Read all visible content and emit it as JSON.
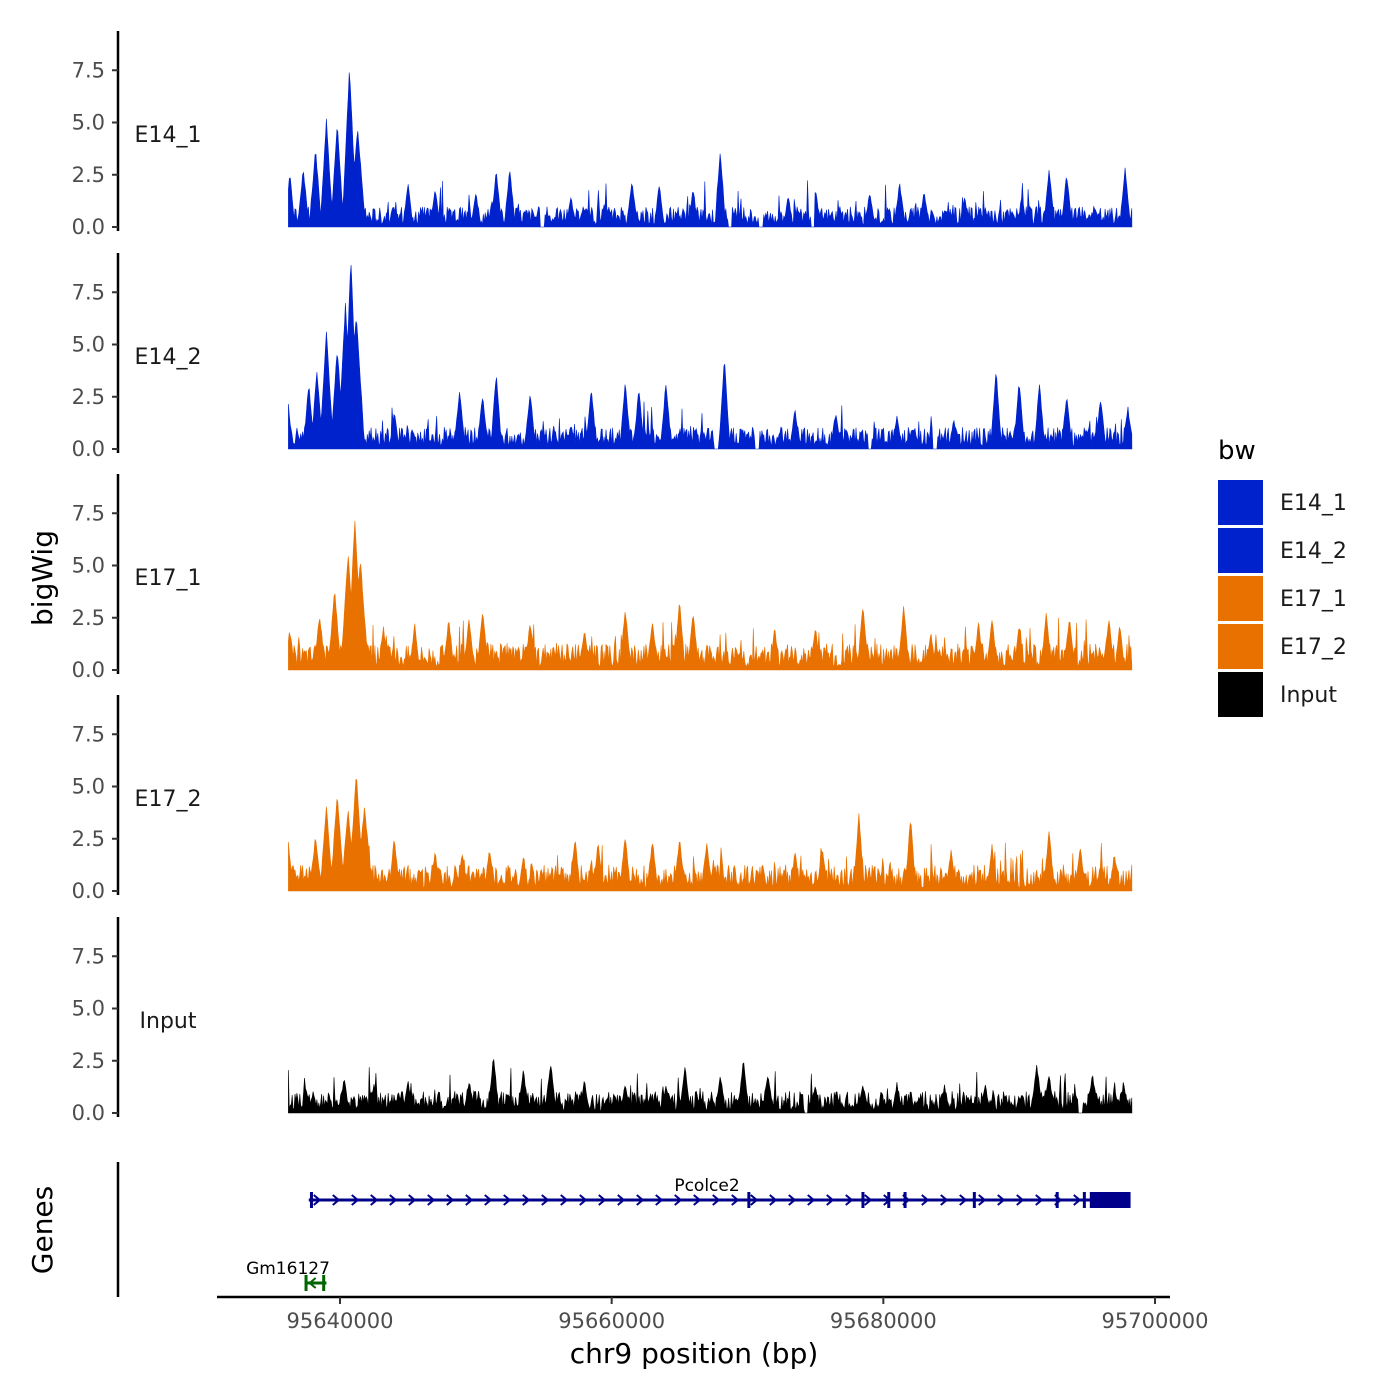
{
  "chart_data": {
    "type": "area",
    "x_axis": {
      "label": "chr9 position (bp)",
      "range": [
        95630000,
        95702000
      ],
      "ticks": [
        95640000,
        95660000,
        95680000,
        95700000
      ],
      "tick_labels": [
        "95640000",
        "95660000",
        "95680000",
        "95700000"
      ]
    },
    "y_axis": {
      "label": "bigWig",
      "range": [
        0,
        9.5
      ],
      "ticks": [
        0.0,
        2.5,
        5.0,
        7.5
      ],
      "tick_labels": [
        "0.0",
        "2.5",
        "5.0",
        "7.5"
      ]
    },
    "data_extent": [
      95636200,
      95698300
    ],
    "tracks": [
      {
        "name": "E14_1",
        "color": "#0022CC",
        "baseline": 0.7,
        "peaks": [
          {
            "x": 95636300,
            "y": 2.5,
            "w": 200
          },
          {
            "x": 95637300,
            "y": 2.7,
            "w": 220
          },
          {
            "x": 95638200,
            "y": 3.6,
            "w": 240
          },
          {
            "x": 95639000,
            "y": 5.0,
            "w": 260
          },
          {
            "x": 95639800,
            "y": 4.8,
            "w": 260
          },
          {
            "x": 95640700,
            "y": 7.5,
            "w": 300
          },
          {
            "x": 95641300,
            "y": 4.6,
            "w": 320
          },
          {
            "x": 95645000,
            "y": 2.0,
            "w": 200
          },
          {
            "x": 95647000,
            "y": 1.7,
            "w": 200
          },
          {
            "x": 95650000,
            "y": 1.6,
            "w": 200
          },
          {
            "x": 95651500,
            "y": 2.6,
            "w": 220
          },
          {
            "x": 95652500,
            "y": 2.7,
            "w": 220
          },
          {
            "x": 95657000,
            "y": 1.3,
            "w": 200
          },
          {
            "x": 95661500,
            "y": 2.0,
            "w": 220
          },
          {
            "x": 95663500,
            "y": 1.9,
            "w": 200
          },
          {
            "x": 95666000,
            "y": 1.7,
            "w": 200
          },
          {
            "x": 95668000,
            "y": 3.5,
            "w": 220
          },
          {
            "x": 95673000,
            "y": 1.4,
            "w": 200
          },
          {
            "x": 95675000,
            "y": 1.7,
            "w": 200
          },
          {
            "x": 95679000,
            "y": 1.5,
            "w": 200
          },
          {
            "x": 95681200,
            "y": 2.0,
            "w": 220
          },
          {
            "x": 95683000,
            "y": 1.6,
            "w": 200
          },
          {
            "x": 95686000,
            "y": 1.3,
            "w": 200
          },
          {
            "x": 95690200,
            "y": 1.3,
            "w": 200
          },
          {
            "x": 95692200,
            "y": 2.6,
            "w": 220
          },
          {
            "x": 95693500,
            "y": 2.4,
            "w": 220
          },
          {
            "x": 95697800,
            "y": 2.7,
            "w": 220
          }
        ],
        "gaps": [
          95654900,
          95668700,
          95671000,
          95674800
        ]
      },
      {
        "name": "E14_2",
        "color": "#0022CC",
        "baseline": 0.75,
        "peaks": [
          {
            "x": 95636100,
            "y": 2.9,
            "w": 200
          },
          {
            "x": 95637700,
            "y": 3.0,
            "w": 220
          },
          {
            "x": 95638300,
            "y": 3.6,
            "w": 240
          },
          {
            "x": 95639000,
            "y": 5.5,
            "w": 280
          },
          {
            "x": 95639800,
            "y": 4.7,
            "w": 280
          },
          {
            "x": 95640400,
            "y": 6.8,
            "w": 300
          },
          {
            "x": 95640800,
            "y": 9.0,
            "w": 300
          },
          {
            "x": 95641200,
            "y": 6.4,
            "w": 340
          },
          {
            "x": 95644000,
            "y": 1.6,
            "w": 200
          },
          {
            "x": 95648800,
            "y": 2.7,
            "w": 220
          },
          {
            "x": 95650500,
            "y": 2.5,
            "w": 220
          },
          {
            "x": 95651500,
            "y": 3.5,
            "w": 220
          },
          {
            "x": 95654000,
            "y": 2.6,
            "w": 220
          },
          {
            "x": 95658500,
            "y": 2.7,
            "w": 220
          },
          {
            "x": 95661000,
            "y": 3.1,
            "w": 220
          },
          {
            "x": 95662000,
            "y": 2.7,
            "w": 220
          },
          {
            "x": 95664000,
            "y": 3.1,
            "w": 220
          },
          {
            "x": 95668300,
            "y": 4.2,
            "w": 220
          },
          {
            "x": 95673500,
            "y": 1.8,
            "w": 200
          },
          {
            "x": 95676500,
            "y": 1.6,
            "w": 200
          },
          {
            "x": 95681000,
            "y": 1.5,
            "w": 200
          },
          {
            "x": 95685200,
            "y": 1.3,
            "w": 200
          },
          {
            "x": 95688300,
            "y": 3.7,
            "w": 220
          },
          {
            "x": 95690000,
            "y": 3.1,
            "w": 220
          },
          {
            "x": 95691500,
            "y": 3.0,
            "w": 220
          },
          {
            "x": 95693500,
            "y": 2.5,
            "w": 220
          },
          {
            "x": 95696000,
            "y": 2.3,
            "w": 220
          },
          {
            "x": 95698000,
            "y": 1.9,
            "w": 200
          }
        ],
        "gaps": [
          95667700,
          95670700,
          95679000,
          95683800
        ]
      },
      {
        "name": "E17_1",
        "color": "#E87100",
        "baseline": 0.9,
        "peaks": [
          {
            "x": 95636300,
            "y": 1.8,
            "w": 200
          },
          {
            "x": 95638500,
            "y": 2.5,
            "w": 240
          },
          {
            "x": 95639600,
            "y": 3.7,
            "w": 260
          },
          {
            "x": 95640600,
            "y": 5.5,
            "w": 300
          },
          {
            "x": 95641100,
            "y": 7.1,
            "w": 300
          },
          {
            "x": 95641500,
            "y": 5.2,
            "w": 320
          },
          {
            "x": 95643200,
            "y": 1.9,
            "w": 200
          },
          {
            "x": 95645500,
            "y": 2.1,
            "w": 200
          },
          {
            "x": 95648000,
            "y": 2.3,
            "w": 220
          },
          {
            "x": 95649500,
            "y": 2.3,
            "w": 220
          },
          {
            "x": 95650500,
            "y": 2.8,
            "w": 220
          },
          {
            "x": 95654000,
            "y": 2.2,
            "w": 220
          },
          {
            "x": 95658000,
            "y": 1.8,
            "w": 200
          },
          {
            "x": 95661000,
            "y": 2.8,
            "w": 220
          },
          {
            "x": 95663000,
            "y": 2.2,
            "w": 220
          },
          {
            "x": 95665000,
            "y": 3.2,
            "w": 220
          },
          {
            "x": 95666000,
            "y": 2.6,
            "w": 220
          },
          {
            "x": 95672000,
            "y": 1.9,
            "w": 200
          },
          {
            "x": 95675000,
            "y": 1.9,
            "w": 200
          },
          {
            "x": 95678500,
            "y": 3.0,
            "w": 220
          },
          {
            "x": 95681500,
            "y": 3.0,
            "w": 220
          },
          {
            "x": 95683500,
            "y": 1.7,
            "w": 200
          },
          {
            "x": 95687000,
            "y": 2.2,
            "w": 200
          },
          {
            "x": 95688000,
            "y": 2.3,
            "w": 220
          },
          {
            "x": 95690000,
            "y": 2.1,
            "w": 200
          },
          {
            "x": 95692000,
            "y": 2.6,
            "w": 220
          },
          {
            "x": 95693700,
            "y": 2.4,
            "w": 220
          },
          {
            "x": 95696600,
            "y": 2.4,
            "w": 220
          },
          {
            "x": 95697400,
            "y": 2.0,
            "w": 200
          }
        ],
        "gaps": []
      },
      {
        "name": "E17_2",
        "color": "#E87100",
        "baseline": 0.9,
        "peaks": [
          {
            "x": 95636200,
            "y": 2.2,
            "w": 200
          },
          {
            "x": 95638200,
            "y": 2.5,
            "w": 240
          },
          {
            "x": 95639000,
            "y": 3.9,
            "w": 260
          },
          {
            "x": 95639800,
            "y": 4.5,
            "w": 280
          },
          {
            "x": 95640600,
            "y": 3.8,
            "w": 280
          },
          {
            "x": 95641200,
            "y": 5.6,
            "w": 300
          },
          {
            "x": 95641800,
            "y": 3.9,
            "w": 320
          },
          {
            "x": 95644000,
            "y": 2.5,
            "w": 200
          },
          {
            "x": 95647000,
            "y": 1.8,
            "w": 200
          },
          {
            "x": 95649000,
            "y": 1.7,
            "w": 200
          },
          {
            "x": 95651000,
            "y": 1.9,
            "w": 200
          },
          {
            "x": 95653500,
            "y": 1.6,
            "w": 200
          },
          {
            "x": 95657300,
            "y": 2.4,
            "w": 220
          },
          {
            "x": 95659000,
            "y": 2.2,
            "w": 200
          },
          {
            "x": 95661000,
            "y": 2.5,
            "w": 220
          },
          {
            "x": 95663000,
            "y": 2.3,
            "w": 220
          },
          {
            "x": 95665000,
            "y": 2.4,
            "w": 220
          },
          {
            "x": 95667000,
            "y": 2.2,
            "w": 220
          },
          {
            "x": 95673500,
            "y": 1.8,
            "w": 200
          },
          {
            "x": 95675500,
            "y": 2.0,
            "w": 200
          },
          {
            "x": 95678200,
            "y": 3.6,
            "w": 220
          },
          {
            "x": 95682000,
            "y": 3.4,
            "w": 220
          },
          {
            "x": 95685000,
            "y": 1.9,
            "w": 200
          },
          {
            "x": 95688000,
            "y": 2.1,
            "w": 200
          },
          {
            "x": 95692200,
            "y": 2.7,
            "w": 220
          },
          {
            "x": 95694500,
            "y": 2.0,
            "w": 200
          },
          {
            "x": 95697000,
            "y": 1.6,
            "w": 200
          }
        ],
        "gaps": []
      },
      {
        "name": "Input",
        "color": "#000000",
        "baseline": 0.75,
        "peaks": [
          {
            "x": 95637500,
            "y": 1.1,
            "w": 200
          },
          {
            "x": 95640300,
            "y": 1.5,
            "w": 220
          },
          {
            "x": 95642500,
            "y": 1.2,
            "w": 200
          },
          {
            "x": 95645000,
            "y": 1.4,
            "w": 200
          },
          {
            "x": 95649500,
            "y": 1.4,
            "w": 220
          },
          {
            "x": 95651300,
            "y": 2.6,
            "w": 220
          },
          {
            "x": 95653500,
            "y": 1.9,
            "w": 220
          },
          {
            "x": 95655500,
            "y": 2.3,
            "w": 220
          },
          {
            "x": 95658000,
            "y": 1.4,
            "w": 200
          },
          {
            "x": 95661000,
            "y": 1.2,
            "w": 200
          },
          {
            "x": 95664000,
            "y": 1.2,
            "w": 200
          },
          {
            "x": 95665400,
            "y": 2.1,
            "w": 220
          },
          {
            "x": 95668000,
            "y": 1.7,
            "w": 220
          },
          {
            "x": 95669700,
            "y": 2.4,
            "w": 220
          },
          {
            "x": 95671500,
            "y": 1.7,
            "w": 220
          },
          {
            "x": 95675000,
            "y": 1.2,
            "w": 200
          },
          {
            "x": 95678500,
            "y": 1.3,
            "w": 200
          },
          {
            "x": 95681000,
            "y": 1.3,
            "w": 200
          },
          {
            "x": 95684500,
            "y": 1.2,
            "w": 200
          },
          {
            "x": 95687500,
            "y": 1.3,
            "w": 200
          },
          {
            "x": 95691300,
            "y": 2.2,
            "w": 220
          },
          {
            "x": 95692200,
            "y": 1.7,
            "w": 220
          },
          {
            "x": 95695400,
            "y": 1.7,
            "w": 220
          },
          {
            "x": 95697700,
            "y": 1.3,
            "w": 200
          }
        ],
        "gaps": [
          95674300,
          95694500
        ]
      }
    ],
    "genes": {
      "panel_label": "Genes",
      "items": [
        {
          "name": "Pcolce2",
          "color": "#00008B",
          "start": 95637700,
          "end": 95698200,
          "strand": "+",
          "exon_ticks": [
            95637900,
            95670100,
            95678500,
            95680400,
            95681600,
            95686700,
            95692800,
            95694800
          ],
          "utr_block": [
            95695200,
            95698200
          ],
          "row": 1
        },
        {
          "name": "Gm16127",
          "color": "#006400",
          "start": 95637400,
          "end": 95639000,
          "strand": "-",
          "exon_ticks": [
            95637500,
            95638800
          ],
          "utr_block": null,
          "row": 2
        }
      ]
    },
    "legend": {
      "title": "bw",
      "position": "right",
      "entries": [
        {
          "label": "E14_1",
          "color": "#0022CC"
        },
        {
          "label": "E14_2",
          "color": "#0022CC"
        },
        {
          "label": "E17_1",
          "color": "#E87100"
        },
        {
          "label": "E17_2",
          "color": "#E87100"
        },
        {
          "label": "Input",
          "color": "#000000"
        }
      ]
    }
  }
}
